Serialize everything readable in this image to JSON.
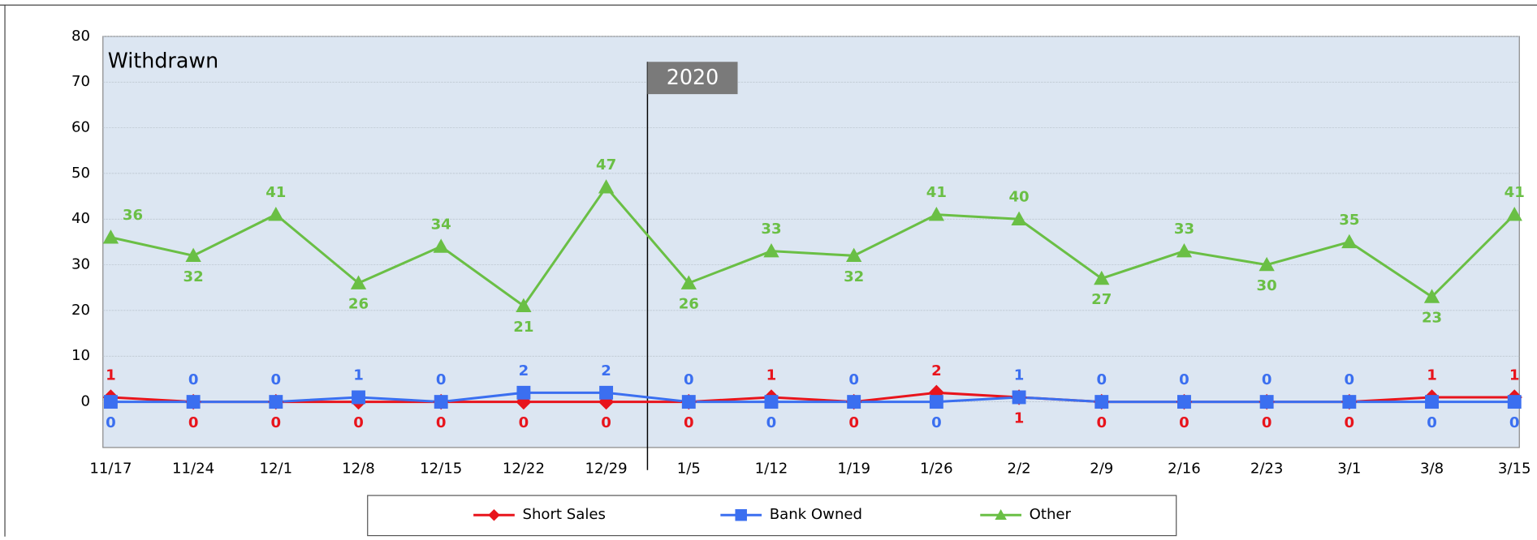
{
  "chart_data": {
    "type": "line",
    "title": "Withdrawn",
    "categories": [
      "11/17",
      "11/24",
      "12/1",
      "12/8",
      "12/15",
      "12/22",
      "12/29",
      "1/5",
      "1/12",
      "1/19",
      "1/26",
      "2/2",
      "2/9",
      "2/16",
      "2/23",
      "3/1",
      "3/8",
      "3/15"
    ],
    "series": [
      {
        "name": "Short Sales",
        "color": "#e8141c",
        "marker": "diamond",
        "values": [
          1,
          0,
          0,
          0,
          0,
          0,
          0,
          0,
          1,
          0,
          2,
          1,
          0,
          0,
          0,
          0,
          1,
          1
        ]
      },
      {
        "name": "Bank Owned",
        "color": "#3b6ff0",
        "marker": "square",
        "values": [
          0,
          0,
          0,
          1,
          0,
          2,
          2,
          0,
          0,
          0,
          0,
          1,
          0,
          0,
          0,
          0,
          0,
          0
        ]
      },
      {
        "name": "Other",
        "color": "#6abf45",
        "marker": "triangle",
        "values": [
          36,
          32,
          41,
          26,
          34,
          21,
          47,
          26,
          33,
          32,
          41,
          40,
          27,
          33,
          30,
          35,
          23,
          41
        ]
      }
    ],
    "ylim": [
      -10,
      80
    ],
    "yticks": [
      0,
      10,
      20,
      30,
      40,
      50,
      60,
      70,
      80
    ],
    "grid": true,
    "annotations": [
      {
        "text": "2020",
        "category": "1/5"
      }
    ],
    "legend": "bottom"
  }
}
